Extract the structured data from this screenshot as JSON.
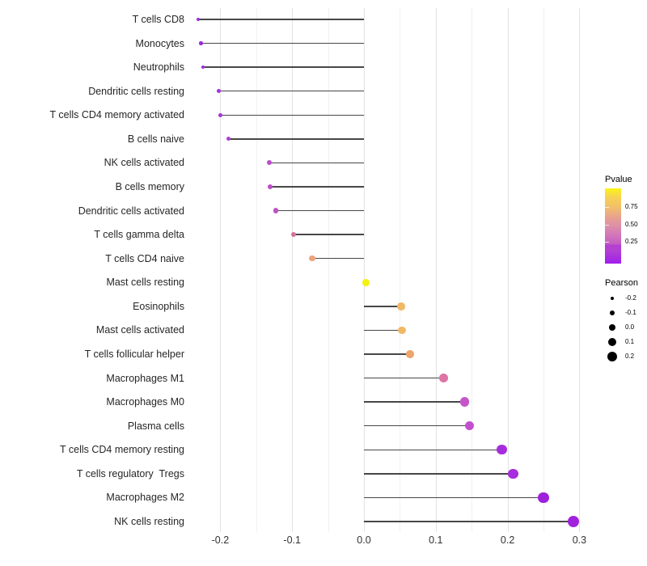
{
  "chart_data": {
    "type": "scatter",
    "subtype": "horizontal-lollipop",
    "title": "",
    "xlabel": "",
    "ylabel": "",
    "x_ticks": [
      "-0.2",
      "-0.1",
      "0.0",
      "0.1",
      "0.2",
      "0.3"
    ],
    "x_range": [
      -0.245,
      0.325
    ],
    "grid": "on",
    "categories": [
      "T cells CD8",
      "Monocytes",
      "Neutrophils",
      "Dendritic cells resting",
      "T cells CD4 memory activated",
      "B cells naive",
      "NK cells activated",
      "B cells memory",
      "Dendritic cells activated",
      "T cells gamma delta",
      "T cells CD4 naive",
      "Mast cells resting",
      "Eosinophils",
      "Mast cells activated",
      "T cells follicular helper",
      "Macrophages M1",
      "Macrophages M0",
      "Plasma cells",
      "T cells CD4 memory resting",
      "T cells regulatory  Tregs",
      "Macrophages M2",
      "NK cells resting"
    ],
    "series": [
      {
        "name": "Pearson",
        "values": [
          -0.231,
          -0.227,
          -0.224,
          -0.202,
          -0.2,
          -0.189,
          -0.132,
          -0.131,
          -0.123,
          -0.098,
          -0.072,
          0.003,
          0.052,
          0.053,
          0.064,
          0.111,
          0.14,
          0.147,
          0.192,
          0.208,
          0.25,
          0.292
        ]
      }
    ],
    "point_colors": [
      "#9a2be0",
      "#9a2be0",
      "#9b2dde",
      "#a335da",
      "#a436d9",
      "#ae3fd3",
      "#bc4dc9",
      "#bc4dc8",
      "#bf53c5",
      "#d56f9b",
      "#eda47c",
      "#f5f112",
      "#f0b966",
      "#f0b966",
      "#eda46d",
      "#dd74a5",
      "#c555c9",
      "#c250ce",
      "#a72ddc",
      "#a62cdd",
      "#9d20dc",
      "#a122db"
    ],
    "legends": {
      "pvalue": {
        "title": "Pvalue",
        "ticks": [
          "0.75",
          "0.50",
          "0.25"
        ],
        "gradient_top_to_bottom": [
          "#faf414",
          "#f2bf6b",
          "#dd8fa9",
          "#c25bc5",
          "#a01eec"
        ],
        "position": "right-top"
      },
      "pearson": {
        "title": "Pearson",
        "items": [
          "-0.2",
          "-0.1",
          "0.0",
          "0.1",
          "0.2"
        ],
        "item_values": [
          -0.2,
          -0.1,
          0.0,
          0.1,
          0.2
        ],
        "position": "right-middle"
      }
    }
  }
}
